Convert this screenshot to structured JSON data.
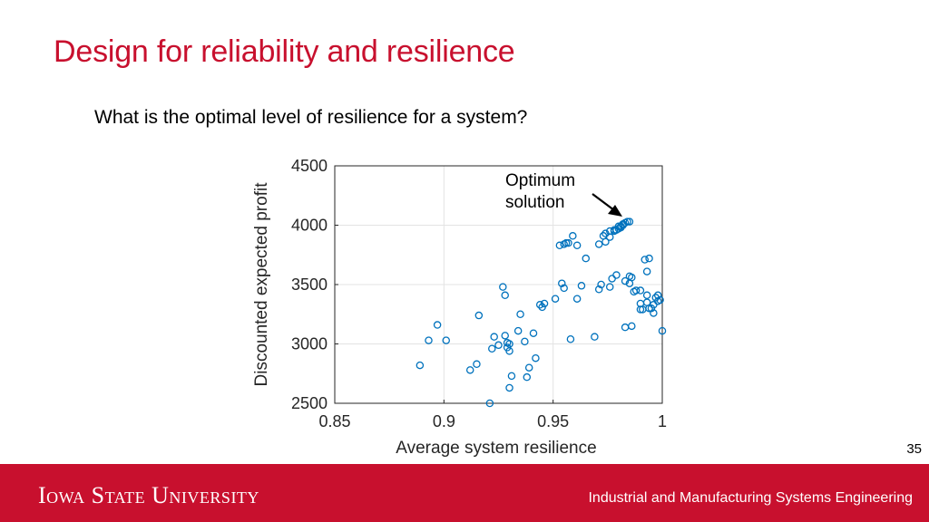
{
  "slide": {
    "title": "Design for reliability and resilience",
    "question": "What is the optimal level of resilience for a system?",
    "page_number": "35"
  },
  "footer": {
    "university": "Iowa State University",
    "department": "Industrial and Manufacturing Systems Engineering"
  },
  "colors": {
    "title": "#c8102e",
    "footer_bg": "#c8102e",
    "marker": "#0072bd",
    "grid": "#e3e3e3"
  },
  "chart_data": {
    "type": "scatter",
    "title": "",
    "xlabel": "Average system resilience",
    "ylabel": "Discounted expected profit",
    "xlim": [
      0.85,
      1
    ],
    "ylim": [
      2500,
      4500
    ],
    "xticks": [
      0.85,
      0.9,
      0.95,
      1
    ],
    "xtick_labels": [
      "0.85",
      "0.9",
      "0.95",
      "1"
    ],
    "yticks": [
      2500,
      3000,
      3500,
      4000,
      4500
    ],
    "ytick_labels": [
      "2500",
      "3000",
      "3500",
      "4000",
      "4500"
    ],
    "grid": true,
    "annotation": {
      "text": [
        "Optimum",
        "solution"
      ],
      "points_to": [
        0.983,
        4030
      ]
    },
    "series": [
      {
        "marker": "open-circle",
        "points": [
          [
            0.889,
            2820
          ],
          [
            0.893,
            3030
          ],
          [
            0.897,
            3160
          ],
          [
            0.901,
            3030
          ],
          [
            0.912,
            2780
          ],
          [
            0.915,
            2830
          ],
          [
            0.916,
            3240
          ],
          [
            0.921,
            2500
          ],
          [
            0.922,
            2960
          ],
          [
            0.923,
            3060
          ],
          [
            0.925,
            2990
          ],
          [
            0.927,
            3480
          ],
          [
            0.928,
            3410
          ],
          [
            0.928,
            3070
          ],
          [
            0.929,
            3010
          ],
          [
            0.929,
            2970
          ],
          [
            0.93,
            2940
          ],
          [
            0.93,
            3000
          ],
          [
            0.93,
            2630
          ],
          [
            0.931,
            2730
          ],
          [
            0.934,
            3110
          ],
          [
            0.935,
            3250
          ],
          [
            0.937,
            3020
          ],
          [
            0.938,
            2720
          ],
          [
            0.939,
            2800
          ],
          [
            0.941,
            3090
          ],
          [
            0.942,
            2880
          ],
          [
            0.944,
            3330
          ],
          [
            0.945,
            3310
          ],
          [
            0.946,
            3340
          ],
          [
            0.951,
            3380
          ],
          [
            0.953,
            3830
          ],
          [
            0.954,
            3510
          ],
          [
            0.955,
            3840
          ],
          [
            0.955,
            3470
          ],
          [
            0.956,
            3850
          ],
          [
            0.957,
            3850
          ],
          [
            0.958,
            3040
          ],
          [
            0.959,
            3910
          ],
          [
            0.961,
            3830
          ],
          [
            0.961,
            3380
          ],
          [
            0.963,
            3490
          ],
          [
            0.965,
            3720
          ],
          [
            0.969,
            3060
          ],
          [
            0.971,
            3840
          ],
          [
            0.971,
            3460
          ],
          [
            0.972,
            3500
          ],
          [
            0.973,
            3910
          ],
          [
            0.974,
            3860
          ],
          [
            0.974,
            3930
          ],
          [
            0.976,
            3950
          ],
          [
            0.976,
            3900
          ],
          [
            0.976,
            3480
          ],
          [
            0.977,
            3550
          ],
          [
            0.978,
            3950
          ],
          [
            0.978,
            3960
          ],
          [
            0.979,
            3580
          ],
          [
            0.979,
            3960
          ],
          [
            0.98,
            3970
          ],
          [
            0.98,
            3990
          ],
          [
            0.981,
            3980
          ],
          [
            0.981,
            3990
          ],
          [
            0.982,
            4000
          ],
          [
            0.982,
            4010
          ],
          [
            0.983,
            4020
          ],
          [
            0.983,
            3530
          ],
          [
            0.983,
            3140
          ],
          [
            0.984,
            4030
          ],
          [
            0.985,
            4030
          ],
          [
            0.985,
            3570
          ],
          [
            0.985,
            3510
          ],
          [
            0.986,
            3150
          ],
          [
            0.986,
            3560
          ],
          [
            0.987,
            3440
          ],
          [
            0.988,
            3450
          ],
          [
            0.99,
            3450
          ],
          [
            0.99,
            3340
          ],
          [
            0.99,
            3290
          ],
          [
            0.991,
            3290
          ],
          [
            0.992,
            3710
          ],
          [
            0.993,
            3610
          ],
          [
            0.993,
            3410
          ],
          [
            0.993,
            3350
          ],
          [
            0.994,
            3720
          ],
          [
            0.994,
            3300
          ],
          [
            0.995,
            3300
          ],
          [
            0.996,
            3260
          ],
          [
            0.996,
            3330
          ],
          [
            0.997,
            3390
          ],
          [
            0.998,
            3410
          ],
          [
            0.998,
            3360
          ],
          [
            0.999,
            3370
          ],
          [
            1.0,
            3110
          ]
        ]
      }
    ]
  }
}
